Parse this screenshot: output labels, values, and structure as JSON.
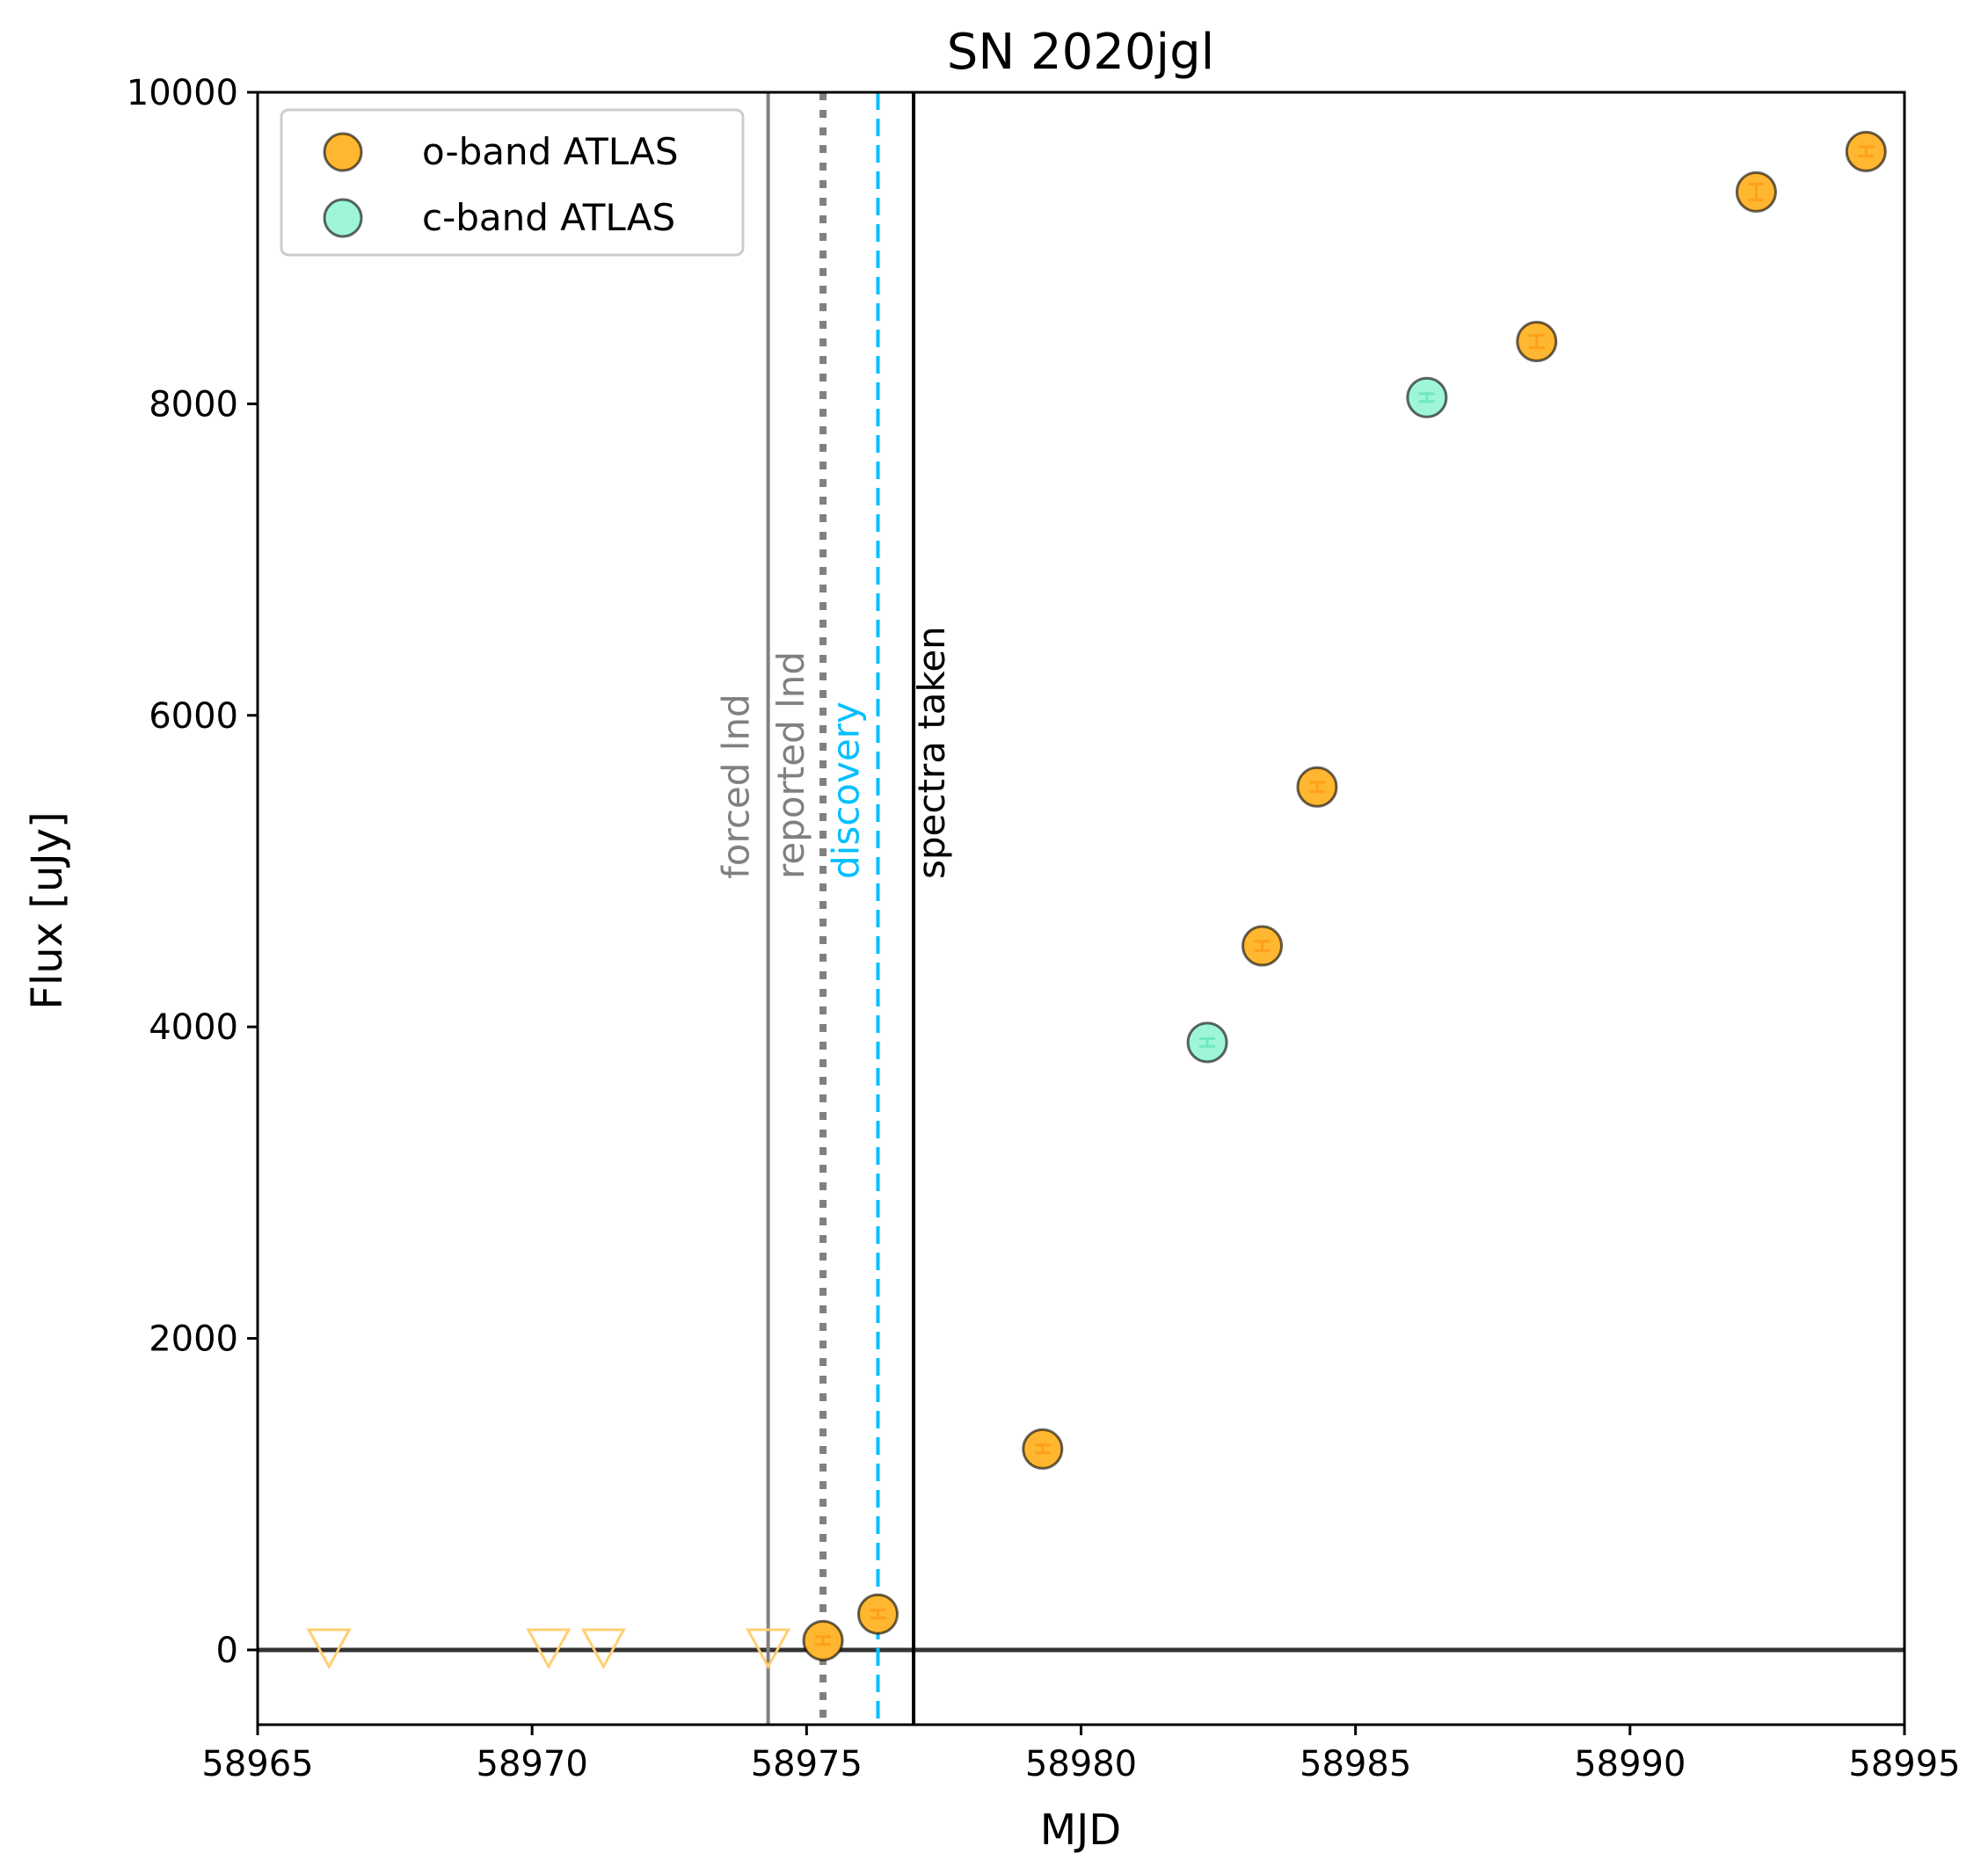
{
  "chart_data": {
    "type": "scatter",
    "title": "SN 2020jgl",
    "xlabel": "MJD",
    "ylabel": "Flux [uJy]",
    "xlim": [
      58965,
      58995
    ],
    "ylim": [
      -480,
      10000
    ],
    "xticks": [
      58965,
      58970,
      58975,
      58980,
      58985,
      58990,
      58995
    ],
    "yticks": [
      0,
      2000,
      4000,
      6000,
      8000,
      10000
    ],
    "legend_position": "upper-left",
    "colors": {
      "o_band": "#ffb732",
      "c_band": "#9ff5d9",
      "upper_limit": "#ffcf73",
      "forced": "#808080",
      "reported": "#808080",
      "discovery": "#00bfff",
      "spectra": "#000000",
      "zero_line": "#333333"
    },
    "series": [
      {
        "name": "o-band ATLAS",
        "points": [
          {
            "x": 58975.3,
            "y": 60,
            "err": 25
          },
          {
            "x": 58976.3,
            "y": 230,
            "err": 25
          },
          {
            "x": 58979.3,
            "y": 1290,
            "err": 25
          },
          {
            "x": 58983.3,
            "y": 4520,
            "err": 30
          },
          {
            "x": 58984.3,
            "y": 5540,
            "err": 30
          },
          {
            "x": 58988.3,
            "y": 8400,
            "err": 40
          },
          {
            "x": 58992.3,
            "y": 9360,
            "err": 50
          },
          {
            "x": 58994.3,
            "y": 9620,
            "err": 30
          }
        ]
      },
      {
        "name": "c-band ATLAS",
        "points": [
          {
            "x": 58982.3,
            "y": 3900,
            "err": 25
          },
          {
            "x": 58986.3,
            "y": 8040,
            "err": 25
          }
        ]
      }
    ],
    "upper_limits": [
      {
        "x": 58966.3,
        "y": 0
      },
      {
        "x": 58970.3,
        "y": 0
      },
      {
        "x": 58971.3,
        "y": 0
      },
      {
        "x": 58974.3,
        "y": 0
      }
    ],
    "vertical_lines": [
      {
        "x": 58974.3,
        "label": "forced lnd",
        "style": "solid",
        "color": "#808080"
      },
      {
        "x": 58975.3,
        "label": "reported lnd",
        "style": "dotted",
        "color": "#808080"
      },
      {
        "x": 58976.3,
        "label": "discovery",
        "style": "dashed",
        "color": "#00bfff"
      },
      {
        "x": 58976.95,
        "label": "spectra taken",
        "style": "solid",
        "color": "#000000"
      }
    ],
    "zero_line": {
      "y": 0
    }
  }
}
